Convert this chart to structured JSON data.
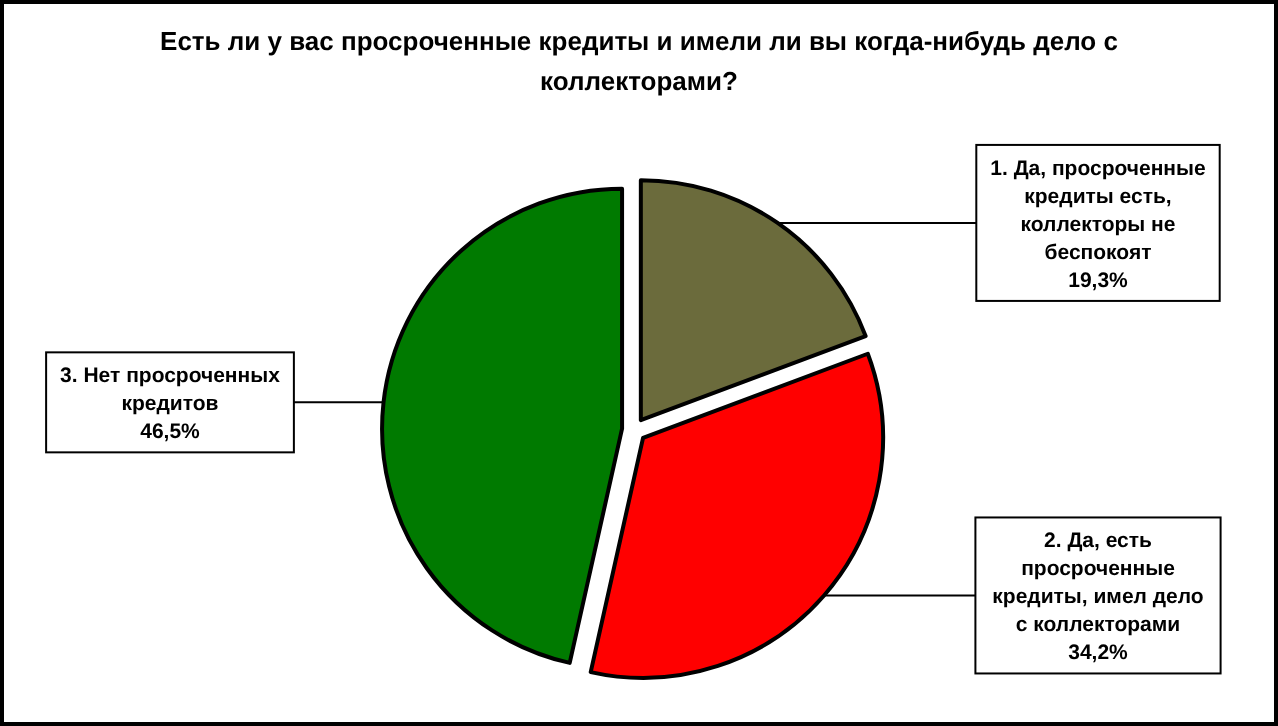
{
  "chart_data": {
    "type": "pie",
    "title": "Есть ли у вас просроченные кредиты и имели ли вы когда-нибудь дело с коллекторами?",
    "categories": [
      "1. Да, просроченные кредиты есть, коллекторы  не беспокоят",
      "2. Да, есть просроченные кредиты, имел дело  с коллекторами",
      "3. Нет просроченных кредитов"
    ],
    "values": [
      19.3,
      34.2,
      46.5
    ],
    "value_labels": [
      "19,3%",
      "34,2%",
      "46,5%"
    ],
    "colors": [
      "#6b6b3c",
      "#ff0000",
      "#007a00"
    ]
  }
}
